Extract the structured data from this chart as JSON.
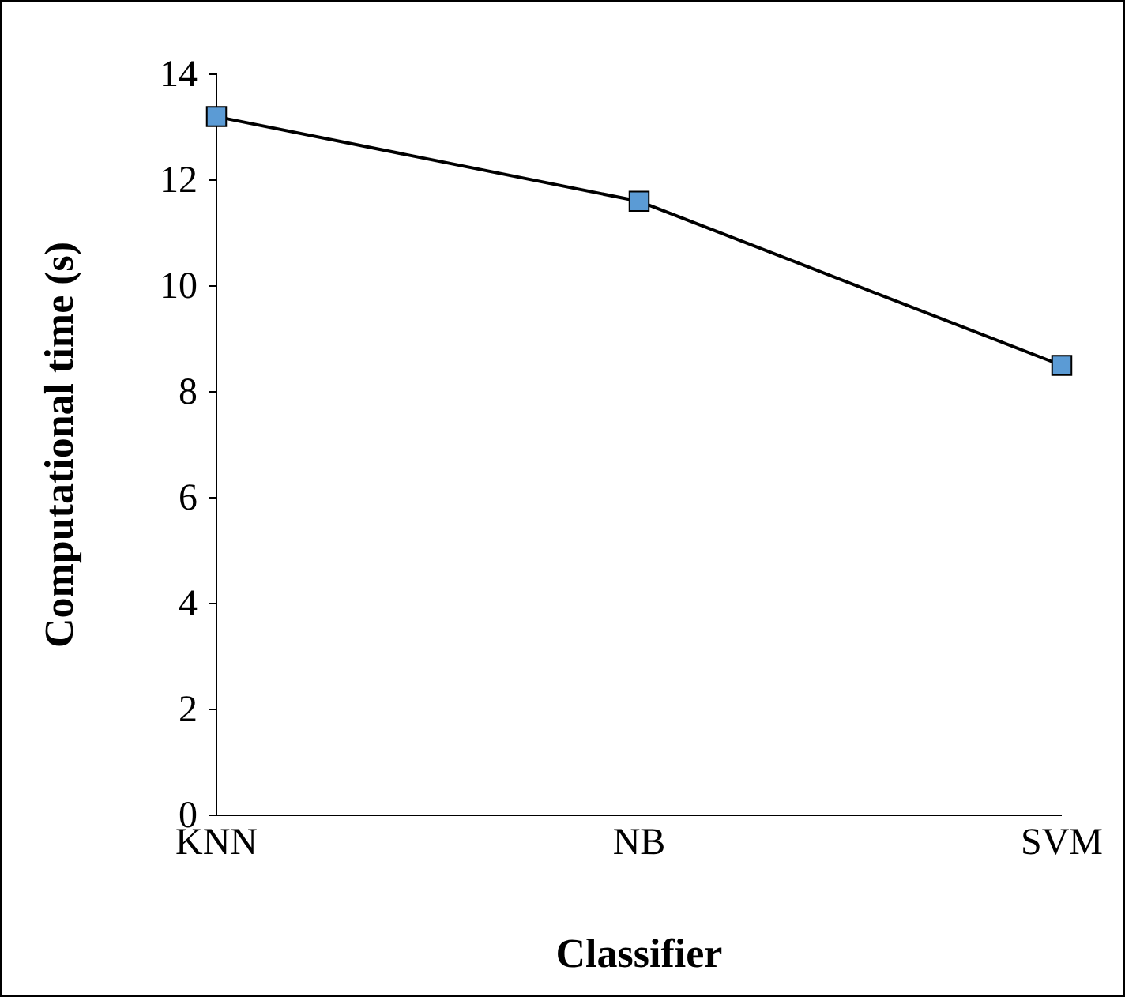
{
  "chart_data": {
    "type": "line",
    "xlabel": "Classifier",
    "ylabel": "Computational time (s)",
    "categories": [
      "KNN",
      "NB",
      "SVM"
    ],
    "series": [
      {
        "color": "#000000",
        "values": [
          13.2,
          11.6,
          8.5
        ]
      }
    ],
    "marker": "square",
    "line_style": "solid",
    "ylim": [
      0,
      14
    ],
    "yticks": [
      0,
      2,
      4,
      6,
      8,
      10,
      12,
      14
    ]
  }
}
